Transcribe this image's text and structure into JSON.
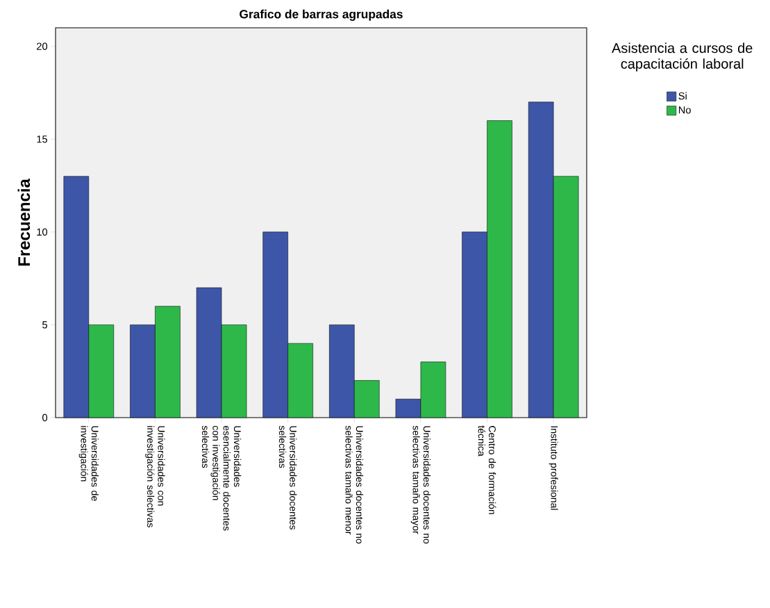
{
  "chart_data": {
    "type": "bar",
    "title": "Grafico de barras agrupadas",
    "ylabel": "Frecuencia",
    "legend_title": "Asistencia a cursos de capacitación laboral",
    "categories": [
      "Universidades de investigación",
      "Universidades con investigación selectivas",
      "Universidades esencialmente docentes con investigación selectivas",
      "Universidades docentes selectivas",
      "Universidades docentes no selectivas tamaño menor",
      "Universidades docentes no selectivas tamaño mayor",
      "Centro de formación técnica",
      "Instituto profesional"
    ],
    "series": [
      {
        "name": "Si",
        "color": "#3d56a8",
        "values": [
          13,
          5,
          7,
          10,
          5,
          1,
          10,
          17
        ]
      },
      {
        "name": "No",
        "color": "#2eb84a",
        "values": [
          5,
          6,
          5,
          4,
          2,
          3,
          16,
          13
        ]
      }
    ],
    "ylim": [
      0,
      21
    ],
    "yticks": [
      0,
      5,
      10,
      15,
      20
    ],
    "legend": "top right",
    "grid": false
  }
}
